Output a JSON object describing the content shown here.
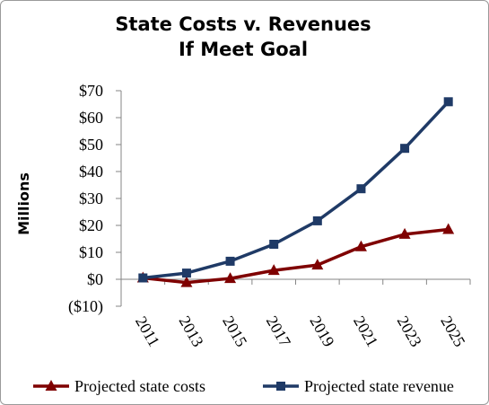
{
  "chart_data": {
    "type": "line",
    "title": [
      "State Costs v. Revenues",
      "If Meet Goal"
    ],
    "ylabel": "Millions",
    "xlabel": "",
    "categories": [
      "2011",
      "2013",
      "2015",
      "2017",
      "2019",
      "2021",
      "2023",
      "2025"
    ],
    "y_ticks": [
      "($10)",
      "$0",
      "$10",
      "$20",
      "$30",
      "$40",
      "$50",
      "$60",
      "$70"
    ],
    "ylim": [
      -10,
      70
    ],
    "grid": false,
    "legend_position": "bottom",
    "series": [
      {
        "name": "Projected state costs",
        "color": "#7f0000",
        "marker": "triangle",
        "values": [
          0.5,
          -1.2,
          0.3,
          3.3,
          5.3,
          12.1,
          16.7,
          18.5
        ]
      },
      {
        "name": "Projected state revenue",
        "color": "#1f3a66",
        "marker": "square",
        "values": [
          0.5,
          2.3,
          6.7,
          13.0,
          21.7,
          33.6,
          48.6,
          65.9
        ]
      }
    ]
  }
}
